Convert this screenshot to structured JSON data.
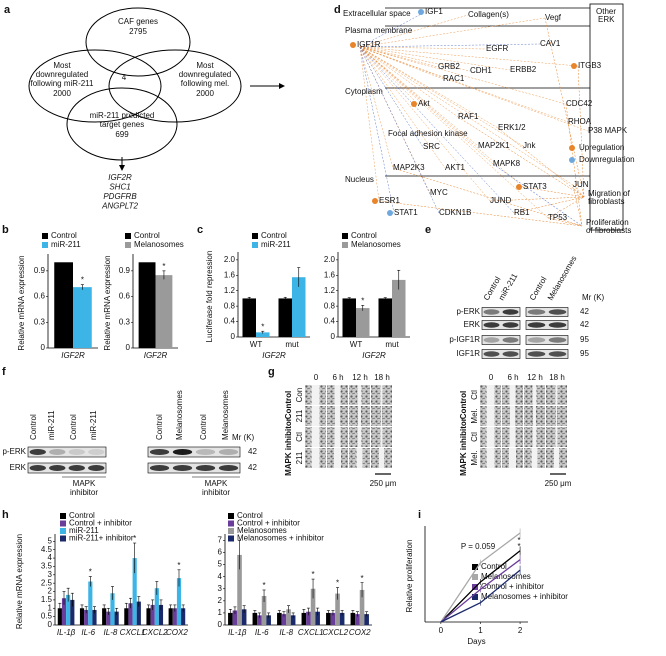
{
  "panel_labels": [
    "a",
    "b",
    "c",
    "d",
    "e",
    "f",
    "g",
    "h",
    "i"
  ],
  "venn": {
    "sets": [
      {
        "label": [
          "CAF genes"
        ],
        "count": 2795
      },
      {
        "label": [
          "Most",
          "downregulated",
          "following miR-211"
        ],
        "count": 2000
      },
      {
        "label": [
          "Most",
          "downregulated",
          "following mel."
        ],
        "count": 2000
      },
      {
        "label": [
          "miR-211 predicted",
          "target genes"
        ],
        "count": 699
      }
    ],
    "overlap": 4,
    "genes": [
      "IGF2R",
      "SHC1",
      "PDGFRB",
      "ANGPLT2"
    ]
  },
  "network": {
    "compartments": [
      "Extracellular space",
      "Plasma membrane",
      "Cytoplasm",
      "Focal adhesion kinase",
      "Nucleus"
    ],
    "other": [
      "Other",
      "ERK"
    ],
    "nodes": [
      "IGF1",
      "Collagen(s)",
      "Vegf",
      "IGF1R",
      "EGFR",
      "CAV1",
      "ITGB3",
      "GRB2",
      "CDH1",
      "ERBB2",
      "RAC1",
      "Akt",
      "CDC42",
      "RAF1",
      "ERK1/2",
      "RHOA",
      "P38 MAPK",
      "MAP2K1",
      "Jnk",
      "SRC",
      "MAP2K3",
      "AKT1",
      "MAPK8",
      "STAT3",
      "JUN",
      "MYC",
      "ESR1",
      "JUND",
      "STAT1",
      "CDKN1B",
      "RB1",
      "TP53"
    ],
    "outcomes": [
      [
        "Migration of",
        "fibroblasts"
      ],
      [
        "Proliferation",
        "of fibroblasts"
      ]
    ],
    "legend": [
      "Upregulation",
      "Downregulation"
    ]
  },
  "chart_data": [
    {
      "type": "bar",
      "ylabel": "Relative mRNA expression",
      "categories": [
        "IGF2R"
      ],
      "series": [
        {
          "name": "Control",
          "color": "#000000",
          "values": [
            1
          ]
        },
        {
          "name": "miR-211",
          "color": "#3cb4e6",
          "values": [
            0.71
          ],
          "errors": [
            0.03
          ]
        }
      ],
      "ylim": [
        0,
        1.05
      ],
      "yticks": [
        0,
        0.3,
        0.6,
        0.9
      ],
      "annotations": [
        "*"
      ]
    },
    {
      "type": "bar",
      "ylabel": "Relative mRNA expression",
      "categories": [
        "IGF2R"
      ],
      "series": [
        {
          "name": "Control",
          "color": "#000000",
          "values": [
            1
          ]
        },
        {
          "name": "Melanosomes",
          "color": "#9a9a9a",
          "values": [
            0.85
          ],
          "errors": [
            0.05
          ]
        }
      ],
      "ylim": [
        0,
        1.05
      ],
      "yticks": [
        0,
        0.3,
        0.6,
        0.9
      ],
      "annotations": [
        "*"
      ]
    },
    {
      "type": "bar",
      "ylabel": "Luciferase fold repression",
      "xlabel": "IGF2R",
      "categories": [
        "WT",
        "mut"
      ],
      "series": [
        {
          "name": "Control",
          "color": "#000000",
          "values": [
            1,
            1
          ],
          "errors": [
            0.03,
            0.03
          ]
        },
        {
          "name": "miR-211",
          "color": "#3cb4e6",
          "values": [
            0.12,
            1.55
          ],
          "errors": [
            0.03,
            0.25
          ]
        }
      ],
      "ylim": [
        0,
        2.1
      ],
      "yticks": [
        0,
        0.4,
        0.8,
        1.2,
        1.6,
        {
          "value": 2,
          "label": "2.0"
        }
      ],
      "annotations": [
        "*"
      ]
    },
    {
      "type": "bar",
      "xlabel": "IGF2R",
      "categories": [
        "WT",
        "mut"
      ],
      "series": [
        {
          "name": "Control",
          "color": "#000000",
          "values": [
            1,
            1
          ],
          "errors": [
            0.02,
            0.02
          ]
        },
        {
          "name": "Melanosomes",
          "color": "#9a9a9a",
          "values": [
            0.75,
            1.48
          ],
          "errors": [
            0.07,
            0.25
          ]
        }
      ],
      "ylim": [
        0,
        2.1
      ],
      "yticks": [
        0,
        0.4,
        0.8,
        1.2,
        1.6,
        {
          "value": 2,
          "label": "2.0"
        }
      ],
      "annotations": [
        "*"
      ]
    },
    {
      "type": "bar",
      "ylabel": "Relative mRNA expression",
      "categories": [
        "IL-1β",
        "IL-6",
        "IL-8",
        "CXCL1",
        "CXCL2",
        "COX2"
      ],
      "series": [
        {
          "name": "Control",
          "color": "#000000",
          "values": [
            1,
            1,
            1,
            1,
            1,
            1
          ],
          "errors": [
            0.3,
            0.2,
            0.2,
            0.3,
            0.2,
            0.2
          ]
        },
        {
          "name": "Control + inhibitor",
          "color": "#6a3d9a",
          "values": [
            1.6,
            0.9,
            0.8,
            1.3,
            1.2,
            1.0
          ],
          "errors": [
            0.4,
            0.2,
            0.2,
            0.3,
            0.3,
            0.2
          ]
        },
        {
          "name": "miR-211",
          "color": "#3cb4e6",
          "values": [
            1.8,
            2.6,
            1.9,
            4.0,
            2.2,
            2.8
          ],
          "errors": [
            0.4,
            0.3,
            0.4,
            0.9,
            0.4,
            0.5
          ]
        },
        {
          "name": "miR-211+ inhibitor",
          "color": "#1b2a6b",
          "values": [
            1.5,
            0.9,
            0.8,
            1.4,
            1.2,
            1.0
          ],
          "errors": [
            0.4,
            0.2,
            0.2,
            0.3,
            0.3,
            0.2
          ]
        }
      ],
      "ylim": [
        0,
        5.2
      ],
      "yticks": [
        0,
        0.5,
        1,
        1.5,
        2,
        2.5,
        3,
        3.5,
        4,
        4.5,
        5
      ],
      "annotations": [
        "*",
        "*",
        "*"
      ]
    },
    {
      "type": "bar",
      "categories": [
        "IL-1β",
        "IL-6",
        "IL-8",
        "CXCL1",
        "CXCL2",
        "COX2"
      ],
      "series": [
        {
          "name": "Control",
          "color": "#000000",
          "values": [
            1,
            1,
            1,
            1,
            1,
            1
          ],
          "errors": [
            0.3,
            0.2,
            0.2,
            0.3,
            0.2,
            0.2
          ]
        },
        {
          "name": "Control + inhibitor",
          "color": "#6a3d9a",
          "values": [
            1.2,
            0.8,
            0.9,
            1.1,
            1.0,
            0.9
          ],
          "errors": [
            0.3,
            0.2,
            0.2,
            0.3,
            0.2,
            0.2
          ]
        },
        {
          "name": "Melanosomes",
          "color": "#9a9a9a",
          "values": [
            5.8,
            2.4,
            1.3,
            3.0,
            2.6,
            2.9
          ],
          "errors": [
            1.2,
            0.5,
            0.3,
            0.8,
            0.5,
            0.6
          ]
        },
        {
          "name": "Melanosomes + inhibitor",
          "color": "#1b2a6b",
          "values": [
            1.3,
            0.8,
            0.8,
            1.1,
            1.0,
            0.9
          ],
          "errors": [
            0.3,
            0.2,
            0.2,
            0.3,
            0.2,
            0.2
          ]
        }
      ],
      "ylim": [
        0,
        7.2
      ],
      "yticks": [
        0,
        1,
        2,
        3,
        4,
        5,
        6,
        7
      ],
      "annotations": [
        "*",
        "*",
        "*",
        "*"
      ]
    },
    {
      "type": "line",
      "ylabel": "Relative proliferation",
      "xlabel": "Days",
      "x": [
        0,
        1,
        2
      ],
      "series": [
        {
          "name": "Control",
          "color": "#000000",
          "values": [
            1,
            1.27,
            1.48
          ],
          "errors": [
            0,
            0.02,
            0.03
          ]
        },
        {
          "name": "Melanosomes",
          "color": "#a8a8a8",
          "values": [
            1,
            1.4,
            1.6
          ],
          "errors": [
            0,
            0.02,
            0.03
          ]
        },
        {
          "name": "Control + inhibitor",
          "color": "#6a3d9a",
          "values": [
            1,
            1.22,
            1.42
          ],
          "errors": [
            0,
            0.02,
            0.03
          ]
        },
        {
          "name": "Melanosomes + inhibitor",
          "color": "#1b2a6b",
          "values": [
            1,
            1.13,
            1.35
          ],
          "errors": [
            0,
            0.02,
            0.03
          ]
        }
      ],
      "xlim": [
        -0.4,
        2.2
      ],
      "xticks": [
        0,
        1,
        2
      ],
      "ylim": [
        1,
        1.62
      ],
      "annotations": [
        "P = 0.059",
        "*",
        "*"
      ]
    }
  ],
  "blot_e": {
    "columns": [
      "Control",
      "miR-211",
      "Control",
      "Melanosomes"
    ],
    "rows": [
      "p-ERK",
      "ERK",
      "p-IGF1R",
      "IGF1R"
    ],
    "weights": [
      42,
      42,
      95,
      95
    ],
    "mr": "Mr (K)"
  },
  "blot_f": {
    "columns": [
      "Control",
      "miR-211",
      "Control",
      "miR-211",
      "Control",
      "Melanosomes",
      "Control",
      "Melanosomes"
    ],
    "rows": [
      "p-ERK",
      "ERK"
    ],
    "weights": [
      42,
      42
    ],
    "mr": "Mr (K)",
    "inhibitor": [
      [
        "MAPK",
        "inhibitor"
      ],
      [
        "MAPK",
        "inhibitor"
      ]
    ]
  },
  "scratch_g": {
    "times": [
      "0",
      "6 h",
      "12 h",
      "18 h"
    ],
    "left": {
      "rows": [
        "Con",
        "211",
        "Ctl",
        "211"
      ],
      "groups": [
        "Control",
        "MAPK inhibitor"
      ]
    },
    "right": {
      "rows": [
        "Ctl",
        "Mel.",
        "Ctl",
        "Mel."
      ],
      "groups": [
        "Control",
        "MAPK inhibitor"
      ]
    },
    "scale": [
      "250 μm",
      "250 μm"
    ]
  }
}
